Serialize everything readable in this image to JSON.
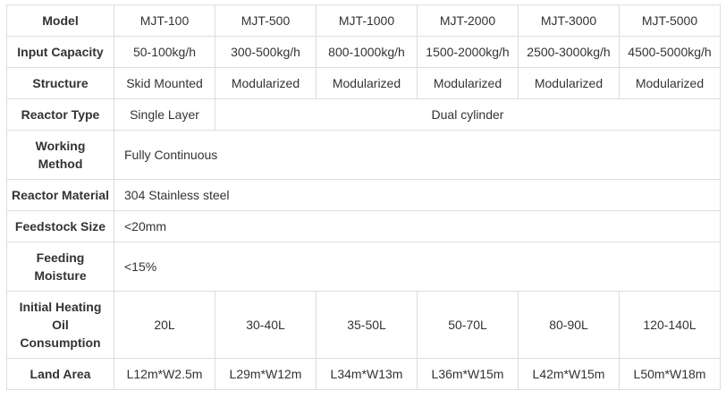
{
  "colors": {
    "border": "#dddddd",
    "text": "#333333",
    "background": "#ffffff"
  },
  "table": {
    "rows": [
      {
        "label": "Model",
        "values": [
          "MJT-100",
          "MJT-500",
          "MJT-1000",
          "MJT-2000",
          "MJT-3000",
          "MJT-5000"
        ]
      },
      {
        "label": "Input Capacity",
        "values": [
          "50-100kg/h",
          "300-500kg/h",
          "800-1000kg/h",
          "1500-2000kg/h",
          "2500-3000kg/h",
          "4500-5000kg/h"
        ]
      },
      {
        "label": "Structure",
        "values": [
          "Skid Mounted",
          "Modularized",
          "Modularized",
          "Modularized",
          "Modularized",
          "Modularized"
        ]
      },
      {
        "label": "Reactor Type",
        "values": [
          "Single Layer",
          "Dual cylinder"
        ]
      },
      {
        "label": "Working\nMethod",
        "values": [
          "Fully Continuous"
        ]
      },
      {
        "label": "Reactor Material",
        "values": [
          "304 Stainless steel"
        ]
      },
      {
        "label": "Feedstock Size",
        "values": [
          "<20mm"
        ]
      },
      {
        "label": "Feeding\nMoisture",
        "values": [
          "<15%"
        ]
      },
      {
        "label": "Initial Heating\nOil\nConsumption",
        "values": [
          "20L",
          "30-40L",
          "35-50L",
          "50-70L",
          "80-90L",
          "120-140L"
        ]
      },
      {
        "label": "Land Area",
        "values": [
          "L12m*W2.5m",
          "L29m*W12m",
          "L34m*W13m",
          "L36m*W15m",
          "L42m*W15m",
          "L50m*W18m"
        ]
      }
    ]
  }
}
